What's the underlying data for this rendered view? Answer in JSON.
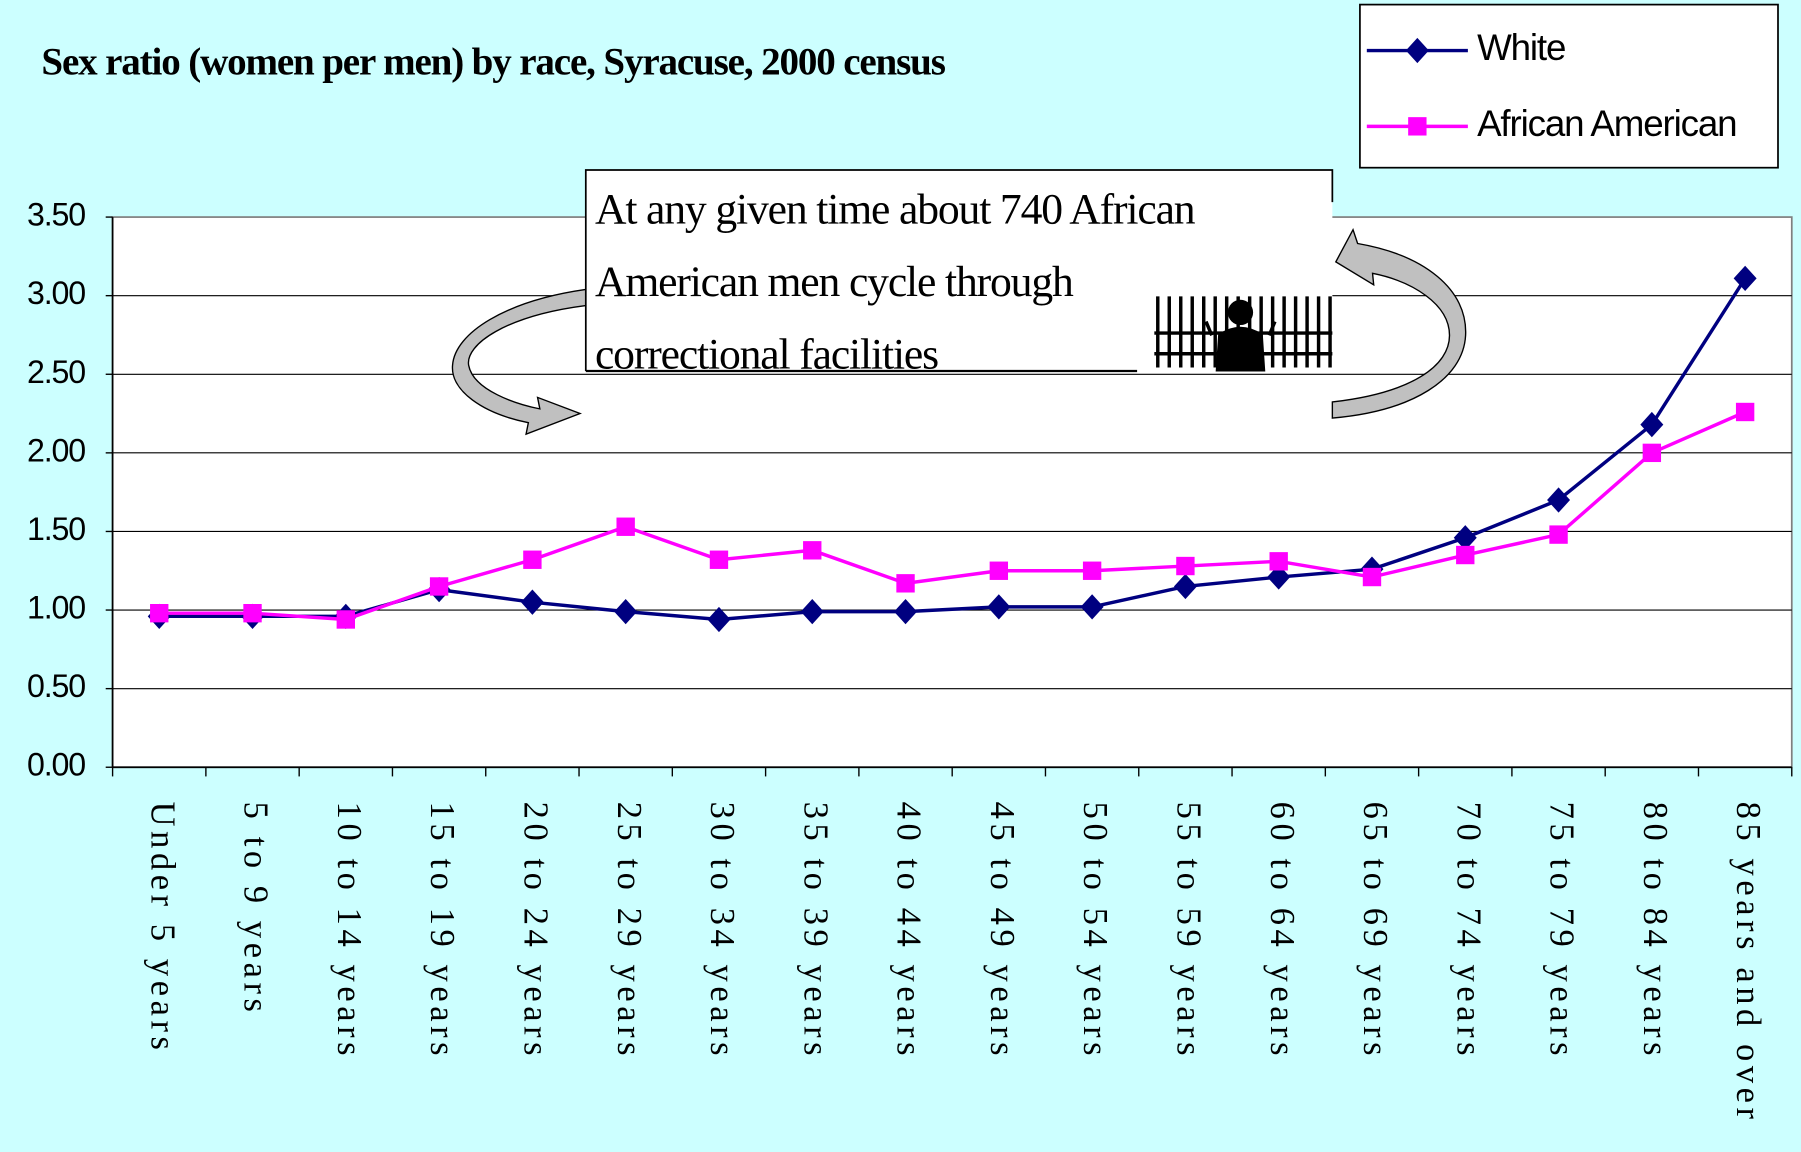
{
  "chart_data": {
    "type": "line",
    "title": "Sex ratio (women per men) by race, Syracuse, 2000 census",
    "categories": [
      "Under 5 years",
      "5 to 9 years",
      "10 to 14 years",
      "15 to 19 years",
      "20 to 24 years",
      "25 to 29 years",
      "30 to 34 years",
      "35 to 39 years",
      "40 to 44 years",
      "45 to 49 years",
      "50 to 54 years",
      "55 to 59 years",
      "60 to 64 years",
      "65 to 69 years",
      "70 to 74 years",
      "75 to 79 years",
      "80 to 84 years",
      "85 years and over"
    ],
    "series": [
      {
        "name": "White",
        "color": "#000080",
        "marker": "diamond",
        "values": [
          0.96,
          0.96,
          0.96,
          1.13,
          1.05,
          0.99,
          0.94,
          0.99,
          0.99,
          1.02,
          1.02,
          1.15,
          1.21,
          1.26,
          1.46,
          1.7,
          2.18,
          3.11
        ]
      },
      {
        "name": "African American",
        "color": "#ff00ff",
        "marker": "square",
        "values": [
          0.98,
          0.98,
          0.94,
          1.15,
          1.32,
          1.53,
          1.32,
          1.38,
          1.17,
          1.25,
          1.25,
          1.28,
          1.31,
          1.21,
          1.35,
          1.48,
          2.0,
          2.26
        ]
      }
    ],
    "ylim": [
      0,
      3.5
    ],
    "yticks": [
      {
        "value": 0,
        "label": "0.00"
      },
      {
        "value": 0.5,
        "label": "0.50"
      },
      {
        "value": 1,
        "label": "1.00"
      },
      {
        "value": 1.5,
        "label": "1.50"
      },
      {
        "value": 2,
        "label": "2.00"
      },
      {
        "value": 2.5,
        "label": "2.50"
      },
      {
        "value": 3,
        "label": "3.00"
      },
      {
        "value": 3.5,
        "label": "3.50"
      }
    ],
    "grid": true,
    "legend": "top-right",
    "annotation": [
      "At any given time about 740 African",
      "American men cycle through",
      "correctional facilities"
    ]
  }
}
